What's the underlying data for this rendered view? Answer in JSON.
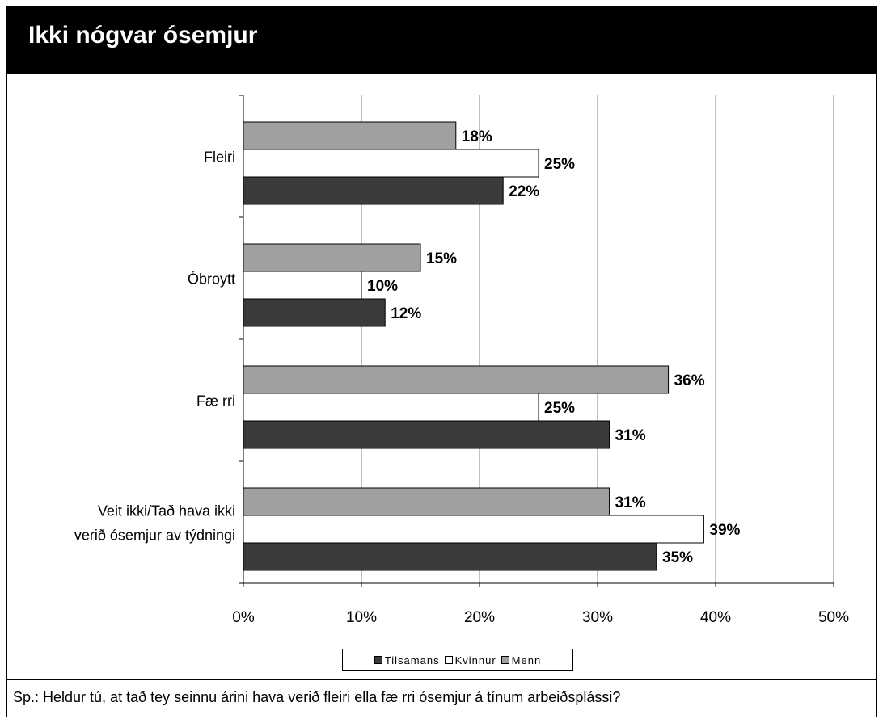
{
  "title": "Ikki nógvar ósemjur",
  "question": "Sp.: Heldur tú, at tað tey seinnu árini hava verið fleiri ella fæ rri ósemjur á tínum arbeiðsplássi?",
  "colors": {
    "tilsamans": "#3a3a3a",
    "kvinnur": "#ffffff",
    "menn": "#a0a0a0"
  },
  "chart_data": {
    "type": "bar",
    "orientation": "horizontal",
    "categories": [
      [
        "Fleiri"
      ],
      [
        "Óbroytt"
      ],
      [
        "Fæ rri"
      ],
      [
        "Veit ikki/Tað hava ikki",
        "verið ósemjur av týdningi"
      ]
    ],
    "series": [
      {
        "name": "Menn",
        "values": [
          18,
          15,
          36,
          31
        ],
        "labels": [
          "18%",
          "15%",
          "36%",
          "31%"
        ]
      },
      {
        "name": "Kvinnur",
        "values": [
          25,
          10,
          25,
          39
        ],
        "labels": [
          "25%",
          "10%",
          "25%",
          "39%"
        ]
      },
      {
        "name": "Tilsamans",
        "values": [
          22,
          12,
          31,
          35
        ],
        "labels": [
          "22%",
          "12%",
          "31%",
          "35%"
        ]
      }
    ],
    "xlim": [
      0,
      50
    ],
    "xticks": [
      "0%",
      "10%",
      "20%",
      "30%",
      "40%",
      "50%"
    ],
    "grid": true,
    "legend": [
      "Tilsamans",
      "Kvinnur",
      "Menn"
    ],
    "legend_position": "bottom"
  }
}
